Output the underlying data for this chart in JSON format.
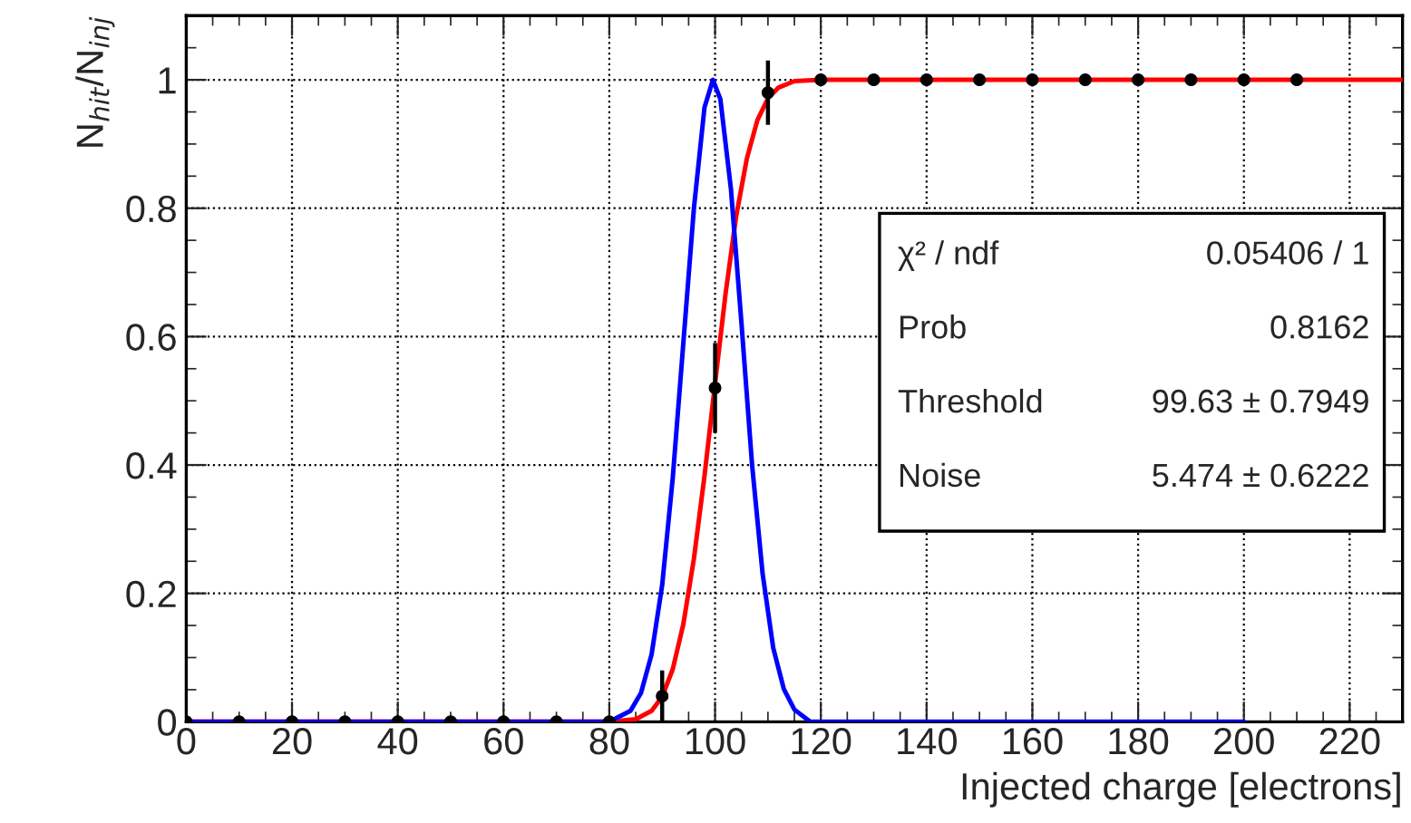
{
  "chart_data": {
    "type": "scatter",
    "xlabel": "Injected charge [electrons]",
    "ylabel": "N$_{hit}$/N$_{inj}$",
    "xlim": [
      0,
      230
    ],
    "xticks": [
      0,
      20,
      40,
      60,
      80,
      100,
      120,
      140,
      160,
      180,
      200,
      220
    ],
    "ylim": [
      0,
      1.1
    ],
    "yticks": [
      0,
      0.2,
      0.4,
      0.6,
      0.8,
      1
    ],
    "grid": true,
    "series": [
      {
        "marker": "circle",
        "color": "#000000",
        "x": [
          0,
          10,
          20,
          30,
          40,
          50,
          60,
          70,
          80,
          90,
          100,
          110,
          120,
          130,
          140,
          150,
          160,
          170,
          180,
          190,
          200,
          210
        ],
        "values": [
          0,
          0,
          0,
          0,
          0,
          0,
          0,
          0,
          0,
          0.04,
          0.52,
          0.98,
          1,
          1,
          1,
          1,
          1,
          1,
          1,
          1,
          1,
          1
        ],
        "errors": [
          null,
          null,
          null,
          null,
          null,
          null,
          null,
          null,
          null,
          0.04,
          0.07,
          0.05,
          null,
          null,
          null,
          null,
          null,
          null,
          null,
          null,
          null,
          null
        ]
      },
      {
        "type": "line",
        "marker": "none",
        "color": "#ff0000",
        "x": [
          0,
          80,
          85,
          88,
          90,
          92,
          94,
          96,
          98,
          100,
          102,
          104,
          106,
          108,
          110,
          112,
          115,
          120,
          230
        ],
        "values": [
          0,
          0,
          0.004,
          0.017,
          0.039,
          0.082,
          0.152,
          0.254,
          0.383,
          0.527,
          0.668,
          0.788,
          0.877,
          0.937,
          0.971,
          0.988,
          0.998,
          1,
          1
        ]
      },
      {
        "type": "line",
        "marker": "none",
        "color": "#0000ff",
        "x": [
          0,
          80,
          84,
          86,
          88,
          90,
          92,
          94,
          96,
          98,
          99.6,
          101,
          103,
          105,
          107,
          109,
          111,
          113,
          115,
          118,
          200
        ],
        "values": [
          0,
          0,
          0.017,
          0.045,
          0.105,
          0.213,
          0.38,
          0.59,
          0.8,
          0.957,
          1,
          0.97,
          0.83,
          0.62,
          0.4,
          0.23,
          0.115,
          0.051,
          0.019,
          0,
          0
        ]
      }
    ],
    "annotations": [
      "χ² / ndf",
      "0.05406 / 1",
      "Prob",
      "0.8162",
      "Threshold",
      "99.63 ± 0.7949",
      "Noise",
      "5.474 ± 0.6222"
    ]
  }
}
